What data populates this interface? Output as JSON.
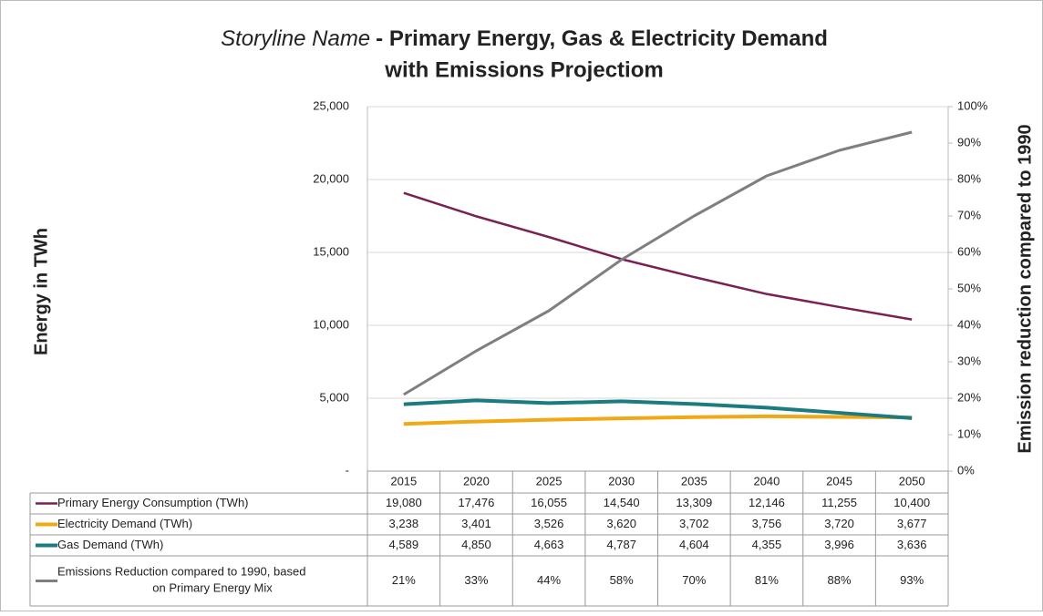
{
  "chart_data": {
    "type": "line",
    "title": [
      "Storyline Name",
      "- Primary Energy, Gas & Electricity Demand",
      "with Emissions Projectiom"
    ],
    "y_label": "Energy in TWh",
    "y2_label": "Emission reduction compared to 1990",
    "categories": [
      "2015",
      "2020",
      "2025",
      "2030",
      "2035",
      "2040",
      "2045",
      "2050"
    ],
    "ylim": [
      0,
      25000
    ],
    "yticks": [
      {
        "value": 0,
        "label": "-"
      },
      {
        "value": 5000,
        "label": "5,000"
      },
      {
        "value": 10000,
        "label": "10,000"
      },
      {
        "value": 15000,
        "label": "15,000"
      },
      {
        "value": 20000,
        "label": "20,000"
      },
      {
        "value": 25000,
        "label": "25,000"
      }
    ],
    "y2lim": [
      0,
      100
    ],
    "y2ticks": [
      {
        "value": 0,
        "label": "0%"
      },
      {
        "value": 10,
        "label": "10%"
      },
      {
        "value": 20,
        "label": "20%"
      },
      {
        "value": 30,
        "label": "30%"
      },
      {
        "value": 40,
        "label": "40%"
      },
      {
        "value": 50,
        "label": "50%"
      },
      {
        "value": 60,
        "label": "60%"
      },
      {
        "value": 70,
        "label": "70%"
      },
      {
        "value": 80,
        "label": "80%"
      },
      {
        "value": 90,
        "label": "90%"
      },
      {
        "value": 100,
        "label": "100%"
      }
    ],
    "grid": true,
    "series": [
      {
        "name": "Primary Energy Consumption (TWh)",
        "color": "#7b2052",
        "values": [
          19080,
          17476,
          16055,
          14540,
          13309,
          12146,
          11255,
          10400
        ],
        "value_labels": [
          "19,080",
          "17,476",
          "16,055",
          "14,540",
          "13,309",
          "12,146",
          "11,255",
          "10,400"
        ]
      },
      {
        "name": "Electricity Demand (TWh)",
        "color": "#f0a814",
        "values": [
          3238,
          3401,
          3526,
          3620,
          3702,
          3756,
          3720,
          3677
        ],
        "value_labels": [
          "3,238",
          "3,401",
          "3,526",
          "3,620",
          "3,702",
          "3,756",
          "3,720",
          "3,677"
        ]
      },
      {
        "name": "Gas Demand (TWh)",
        "color": "#1b7b80",
        "values": [
          4589,
          4850,
          4663,
          4787,
          4604,
          4355,
          3996,
          3636
        ],
        "value_labels": [
          "4,589",
          "4,850",
          "4,663",
          "4,787",
          "4,604",
          "4,355",
          "3,996",
          "3,636"
        ]
      },
      {
        "name": "Emissions Reduction compared to 1990, based on Primary Energy Mix",
        "color": "#7f7f7f",
        "axis": "y2",
        "values": [
          21,
          33,
          44,
          58,
          70,
          81,
          88,
          93
        ],
        "value_labels": [
          "21%",
          "33%",
          "44%",
          "58%",
          "70%",
          "81%",
          "88%",
          "93%"
        ]
      }
    ]
  }
}
